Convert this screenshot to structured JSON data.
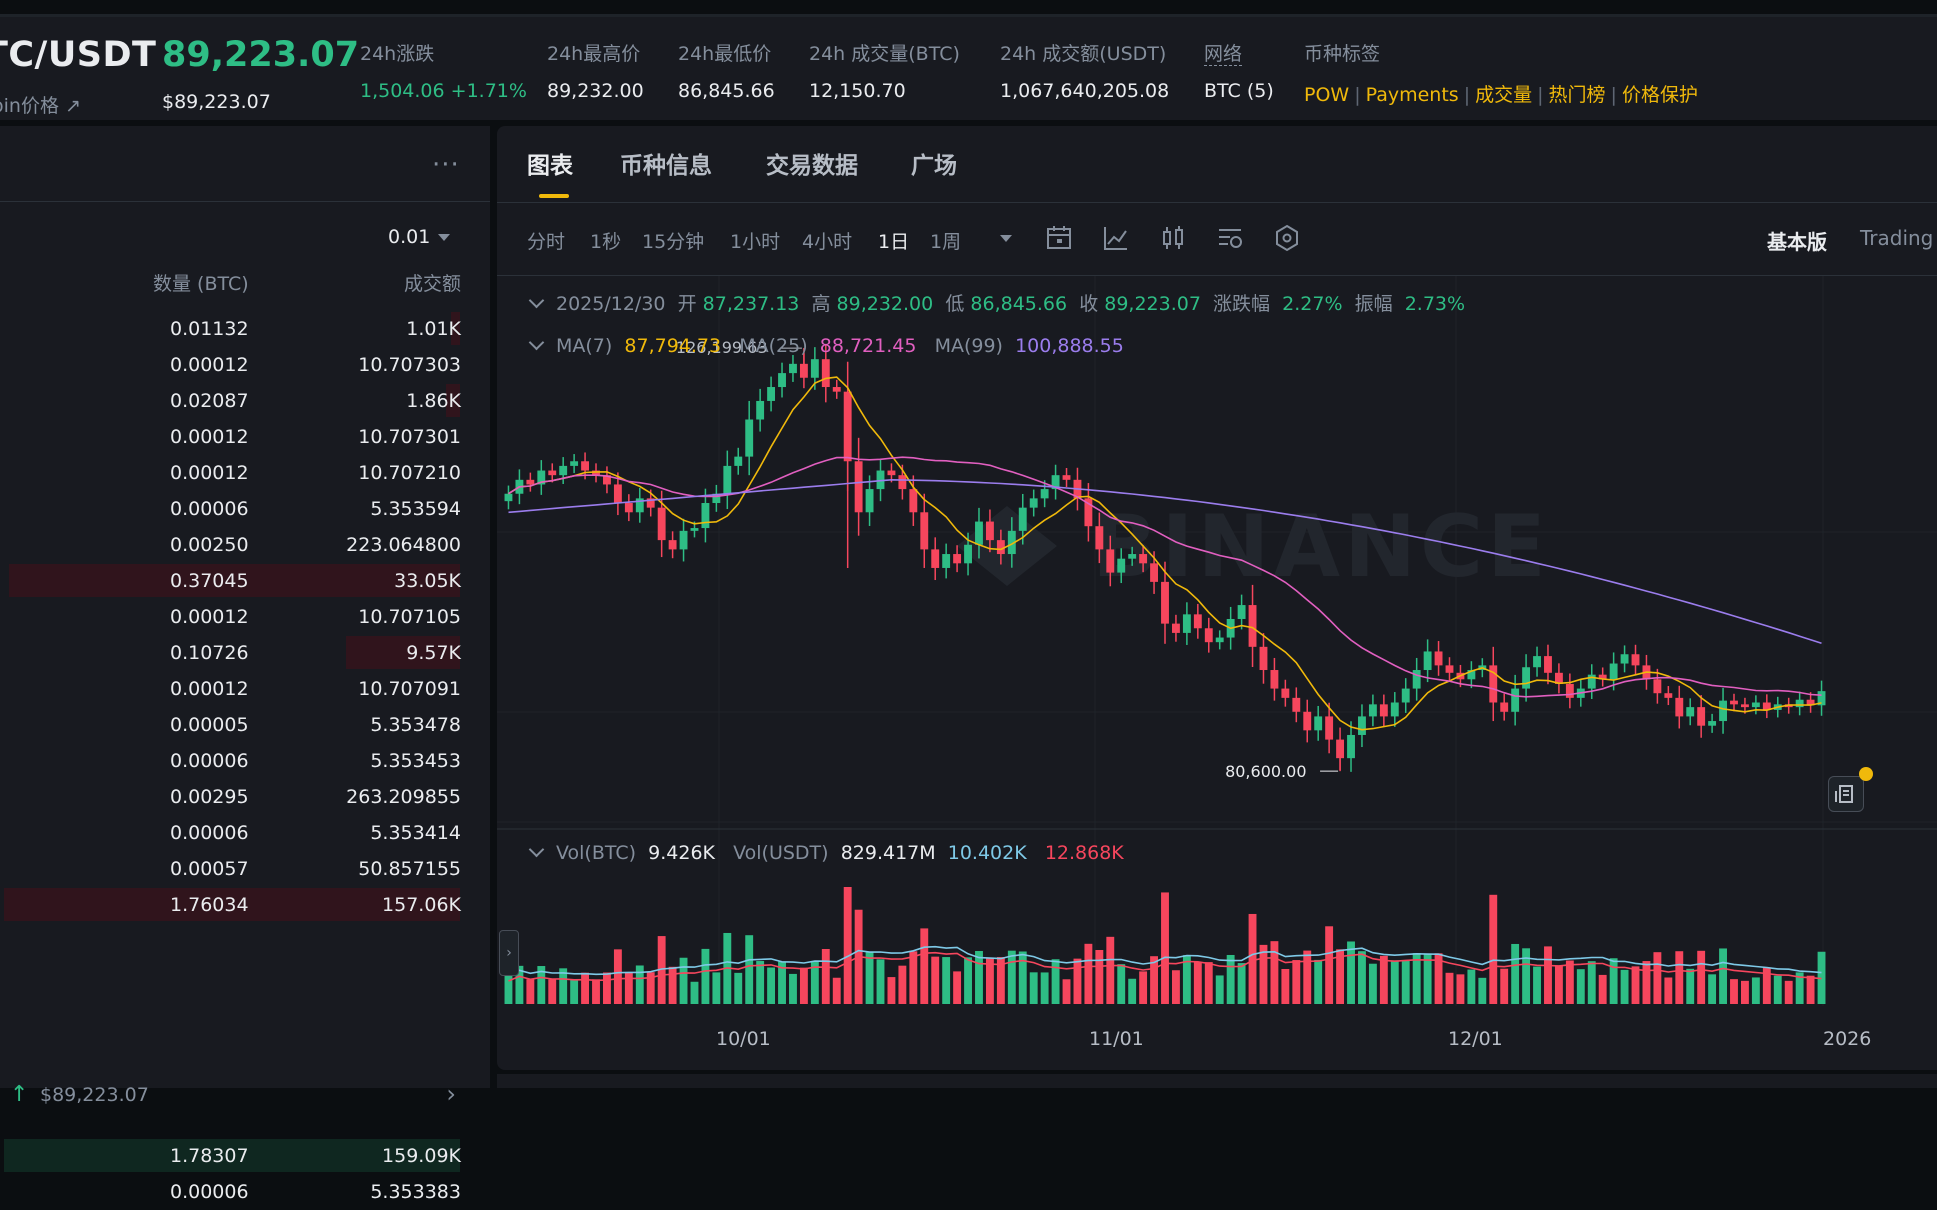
{
  "header": {
    "pair": "TC/USDT",
    "pair_sub": "oin价格 ↗",
    "last_price": "89,223.07",
    "last_price_usd": "$89,223.07",
    "stats": [
      {
        "label": "24h涨跌",
        "value": "1,504.06 +1.71%",
        "green": true
      },
      {
        "label": "24h最高价",
        "value": "89,232.00"
      },
      {
        "label": "24h最低价",
        "value": "86,845.66"
      },
      {
        "label": "24h 成交量(BTC)",
        "value": "12,150.70"
      },
      {
        "label": "24h 成交额(USDT)",
        "value": "1,067,640,205.08"
      },
      {
        "label": "网络",
        "value": "BTC (5)"
      }
    ],
    "tags_label": "币种标签",
    "tags": [
      "POW",
      "Payments",
      "成交量",
      "热门榜",
      "价格保护"
    ]
  },
  "orderbook": {
    "more": "···",
    "precision": "0.01",
    "col_qty": "数量 (BTC)",
    "col_amount": "成交额",
    "asks": [
      {
        "qty": "0.01132",
        "amount": "1.01K",
        "depth": 0.02
      },
      {
        "qty": "0.00012",
        "amount": "10.707303",
        "depth": 0
      },
      {
        "qty": "0.02087",
        "amount": "1.86K",
        "depth": 0.03
      },
      {
        "qty": "0.00012",
        "amount": "10.707301",
        "depth": 0
      },
      {
        "qty": "0.00012",
        "amount": "10.707210",
        "depth": 0
      },
      {
        "qty": "0.00006",
        "amount": "5.353594",
        "depth": 0
      },
      {
        "qty": "0.00250",
        "amount": "223.064800",
        "depth": 0
      },
      {
        "qty": "0.37045",
        "amount": "33.05K",
        "depth": 0.99
      },
      {
        "qty": "0.00012",
        "amount": "10.707105",
        "depth": 0
      },
      {
        "qty": "0.10726",
        "amount": "9.57K",
        "depth": 0.25
      },
      {
        "qty": "0.00012",
        "amount": "10.707091",
        "depth": 0
      },
      {
        "qty": "0.00005",
        "amount": "5.353478",
        "depth": 0
      },
      {
        "qty": "0.00006",
        "amount": "5.353453",
        "depth": 0
      },
      {
        "qty": "0.00295",
        "amount": "263.209855",
        "depth": 0
      },
      {
        "qty": "0.00006",
        "amount": "5.353414",
        "depth": 0
      },
      {
        "qty": "0.00057",
        "amount": "50.857155",
        "depth": 0
      },
      {
        "qty": "1.76034",
        "amount": "157.06K",
        "depth": 1.0
      }
    ],
    "mid_price": "$89,223.07",
    "bids": [
      {
        "qty": "1.78307",
        "amount": "159.09K",
        "depth": 1.0
      },
      {
        "qty": "0.00006",
        "amount": "5.353383",
        "depth": 0
      }
    ]
  },
  "chart_panel": {
    "tabs": [
      "图表",
      "币种信息",
      "交易数据",
      "广场"
    ],
    "timeframes": [
      "分时",
      "1秒",
      "15分钟",
      "1小时",
      "4小时",
      "1日",
      "1周"
    ],
    "active_timeframe": "1日",
    "mode_basic": "基本版",
    "mode_tv": "Trading",
    "ohlc": {
      "date": "2025/12/30",
      "open_label": "开",
      "open": "87,237.13",
      "high_label": "高",
      "high": "89,232.00",
      "low_label": "低",
      "low": "86,845.66",
      "close_label": "收",
      "close": "89,223.07",
      "change_label": "涨跌幅",
      "change": "2.27%",
      "amp_label": "振幅",
      "amp": "2.73%"
    },
    "ma": {
      "ma7_label": "MA(7)",
      "ma7": "87,794.73",
      "ma25_label": "MA(25)",
      "ma25": "88,721.45",
      "ma99_label": "MA(99)",
      "ma99": "100,888.55"
    },
    "vol": {
      "btc_label": "Vol(BTC)",
      "btc": "9.426K",
      "usdt_label": "Vol(USDT)",
      "usdt": "829.417M",
      "ma_a": "10.402K",
      "ma_b": "12.868K"
    },
    "watermark": "BINANCE",
    "high_marker": "126,199.63",
    "low_marker": "80,600.00",
    "x_labels": [
      "10/01",
      "11/01",
      "12/01",
      "2026"
    ]
  },
  "colors": {
    "up": "#2ebd85",
    "down": "#f6465d",
    "ma7": "#f0b90b",
    "ma25": "#e15fc0",
    "ma99": "#9b7ded",
    "accent": "#f0b90b"
  },
  "chart_data": {
    "type": "candlestick",
    "x_labels": [
      "10/01",
      "11/01",
      "12/01",
      "2026"
    ],
    "high_marker": 126199.63,
    "low_marker": 80600.0,
    "last": {
      "date": "2025/12/30",
      "open": 87237.13,
      "high": 89232.0,
      "low": 86845.66,
      "close": 89223.07
    },
    "candles_close": [
      110500,
      112000,
      111500,
      113000,
      112500,
      113500,
      114000,
      113000,
      112500,
      111500,
      109500,
      108500,
      110000,
      109000,
      105500,
      104500,
      106500,
      106800,
      109500,
      110500,
      113500,
      114500,
      118500,
      120500,
      122000,
      123500,
      124500,
      123000,
      125000,
      122000,
      121500,
      114000,
      108500,
      111000,
      113000,
      112500,
      111000,
      108500,
      104500,
      102500,
      104000,
      103000,
      105000,
      107500,
      105500,
      104000,
      106500,
      109000,
      110000,
      111000,
      112500,
      112000,
      110000,
      107000,
      104500,
      102000,
      103500,
      104000,
      103000,
      101000,
      96500,
      95500,
      97500,
      96000,
      94500,
      95000,
      97000,
      98500,
      94000,
      91500,
      89500,
      88500,
      87000,
      85000,
      86500,
      84000,
      82000,
      84500,
      86500,
      87800,
      86500,
      88000,
      89500,
      91500,
      93500,
      92000,
      91200,
      90500,
      91500,
      92000,
      88000,
      87000,
      89500,
      91800,
      93000,
      91200,
      90000,
      88500,
      89500,
      91000,
      90500,
      92200,
      93200,
      92000,
      90500,
      89000,
      88500,
      86500,
      87500,
      85500,
      86000,
      88200,
      87800,
      87500,
      88000,
      87200,
      87800,
      87500,
      88300,
      87700,
      89223
    ]
  }
}
